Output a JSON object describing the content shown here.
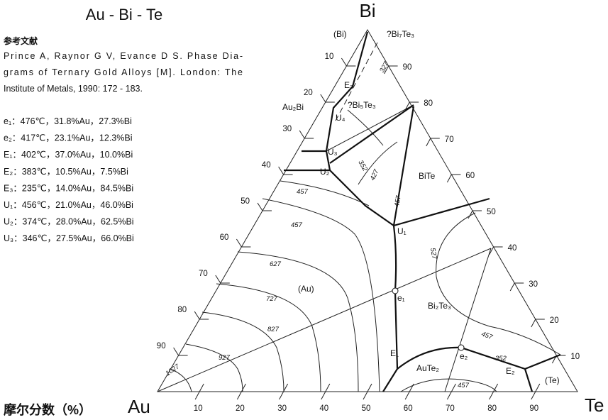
{
  "title": "Au - Bi - Te",
  "vertices": {
    "bi": "Bi",
    "au": "Au",
    "te": "Te"
  },
  "reference": {
    "heading": "参考文献",
    "lines": [
      "Prince A, Raynor G V, Evance D S. Phase Dia-",
      "grams of Ternary Gold Alloys [M]. London: The",
      "Institute of Metals, 1990: 172 - 183."
    ]
  },
  "points": [
    "e₁：476℃，31.8%Au，27.3%Bi",
    "e₂：417℃，23.1%Au，12.3%Bi",
    "E₁：402℃，37.0%Au，10.0%Bi",
    "E₂：383℃，10.5%Au，7.5%Bi",
    "E₃：235℃，14.0%Au，84.5%Bi",
    "U₁：456℃，21.0%Au，46.0%Bi",
    "U₂：374℃，28.0%Au，62.5%Bi",
    "U₃：346℃，27.5%Au，66.0%Bi"
  ],
  "axis_label": "摩尔分数（%）",
  "ticks": {
    "bottom": [
      10,
      20,
      30,
      40,
      50,
      60,
      70,
      80,
      90
    ],
    "right": [
      10,
      20,
      30,
      40,
      50,
      60,
      70,
      80,
      90
    ],
    "left": [
      10,
      20,
      30,
      40,
      50,
      60,
      70,
      80,
      90
    ]
  },
  "phases": [
    "(Bi)",
    "?Bi₇Te₃",
    "Au₂Bi",
    "?Bi₅Te₃",
    "BiTe",
    "Bi₂Te₃",
    "(Au)",
    "AuTe₂",
    "(Te)"
  ],
  "invariants": [
    "E₃",
    "U₄",
    "U₃",
    "U₂",
    "U₁",
    "e₁",
    "E₁",
    "e₂",
    "E₂"
  ],
  "isotherms": [
    "327",
    "352",
    "427",
    "457",
    "457",
    "457",
    "527",
    "627",
    "727",
    "827",
    "927",
    "1027",
    "457",
    "352",
    "457"
  ]
}
